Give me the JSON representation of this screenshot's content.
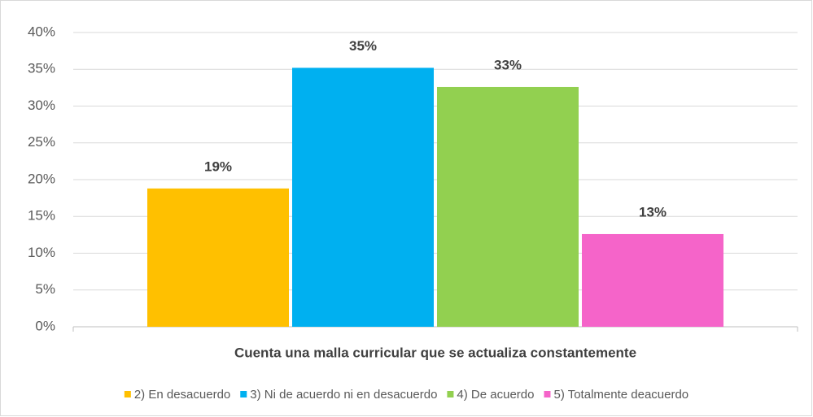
{
  "chart_data": {
    "type": "bar",
    "categories": [
      "Cuenta una malla curricular que se actualiza constantemente"
    ],
    "series": [
      {
        "name": "2) En desacuerdo",
        "color": "#FFC000",
        "values": [
          18.8
        ],
        "value_labels": [
          "19%"
        ]
      },
      {
        "name": "3) Ni de acuerdo ni en desacuerdo",
        "color": "#00B0F0",
        "values": [
          35.2
        ],
        "value_labels": [
          "35%"
        ]
      },
      {
        "name": "4) De acuerdo",
        "color": "#92D050",
        "values": [
          32.6
        ],
        "value_labels": [
          "33%"
        ]
      },
      {
        "name": "5) Totalmente deacuerdo",
        "color": "#F564C9",
        "values": [
          12.6
        ],
        "value_labels": [
          "13%"
        ]
      }
    ],
    "ylim": [
      0,
      40
    ],
    "yticks": [
      {
        "value": 0,
        "label": "0%"
      },
      {
        "value": 5,
        "label": "5%"
      },
      {
        "value": 10,
        "label": "10%"
      },
      {
        "value": 15,
        "label": "15%"
      },
      {
        "value": 20,
        "label": "20%"
      },
      {
        "value": 25,
        "label": "25%"
      },
      {
        "value": 30,
        "label": "30%"
      },
      {
        "value": 35,
        "label": "35%"
      },
      {
        "value": 40,
        "label": "40%"
      }
    ],
    "grid": true,
    "legend": "bottom"
  }
}
